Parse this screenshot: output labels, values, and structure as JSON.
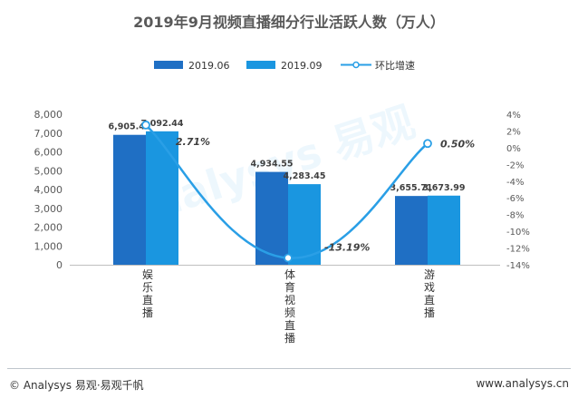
{
  "chart_data": {
    "type": "bar",
    "title": "2019年9月视频直播细分行业活跃人数（万人）",
    "categories": [
      "娱乐直播",
      "体育视频直播",
      "游戏直播"
    ],
    "category_label_lines": [
      [
        "娱",
        "乐",
        "直",
        "播"
      ],
      [
        "体",
        "育",
        "视",
        "频",
        "直",
        "播"
      ],
      [
        "游",
        "戏",
        "直",
        "播"
      ]
    ],
    "series": [
      {
        "name": "2019.06",
        "kind": "bar",
        "axis": "left",
        "color": "#1f6fc4",
        "values": [
          6905.42,
          4934.55,
          3655.71
        ],
        "labels": [
          "6,905.42",
          "4,934.55",
          "3,655.71"
        ]
      },
      {
        "name": "2019.09",
        "kind": "bar",
        "axis": "left",
        "color": "#1a96e0",
        "values": [
          7092.44,
          4283.45,
          3673.99
        ],
        "labels": [
          "7,092.44",
          "4,283.45",
          "3,673.99"
        ]
      },
      {
        "name": "环比增速",
        "kind": "line",
        "axis": "right",
        "color": "#2a9fe6",
        "values": [
          2.71,
          -13.19,
          0.5
        ],
        "labels": [
          "2.71%",
          "-13.19%",
          "0.50%"
        ]
      }
    ],
    "y_left": {
      "min": 0,
      "max": 8000,
      "ticks": [
        0,
        1000,
        2000,
        3000,
        4000,
        5000,
        6000,
        7000,
        8000
      ],
      "tick_labels": [
        "0",
        "1,000",
        "2,000",
        "3,000",
        "4,000",
        "5,000",
        "6,000",
        "7,000",
        "8,000"
      ]
    },
    "y_right": {
      "min": -14,
      "max": 4,
      "ticks": [
        4,
        2,
        0,
        -2,
        -4,
        -6,
        -8,
        -10,
        -12,
        -14
      ],
      "tick_labels": [
        "4%",
        "2%",
        "0%",
        "-2%",
        "-4%",
        "-6%",
        "-8%",
        "-10%",
        "-12%",
        "-14%"
      ]
    },
    "legend_position": "top-center",
    "grid": false
  },
  "footer": {
    "left": "© Analysys 易观·易观千帆",
    "right": "www.analysys.cn"
  },
  "watermark": "Analysys 易观"
}
